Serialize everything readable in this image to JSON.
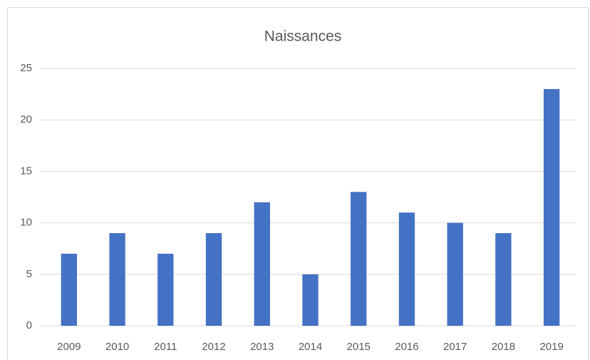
{
  "chart_data": {
    "type": "bar",
    "title": "Naissances",
    "categories": [
      "2009",
      "2010",
      "2011",
      "2012",
      "2013",
      "2014",
      "2015",
      "2016",
      "2017",
      "2018",
      "2019"
    ],
    "values": [
      7,
      9,
      7,
      9,
      12,
      5,
      13,
      11,
      10,
      9,
      23
    ],
    "color": "#4472c4",
    "ylim": [
      0,
      25
    ],
    "yticks": [
      0,
      5,
      10,
      15,
      20,
      25
    ],
    "grid": true
  }
}
